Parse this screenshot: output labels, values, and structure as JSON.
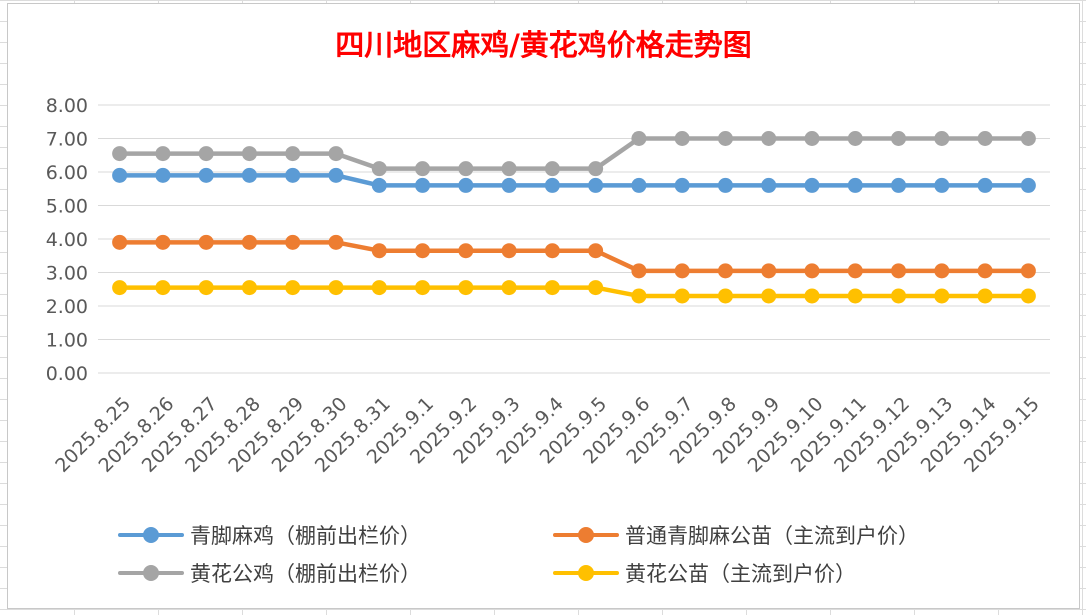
{
  "chart_data": {
    "type": "line",
    "title": "四川地区麻鸡/黄花鸡价格走势图",
    "categories": [
      "2025.8.25",
      "2025.8.26",
      "2025.8.27",
      "2025.8.28",
      "2025.8.29",
      "2025.8.30",
      "2025.8.31",
      "2025.9.1",
      "2025.9.2",
      "2025.9.3",
      "2025.9.4",
      "2025.9.5",
      "2025.9.6",
      "2025.9.7",
      "2025.9.8",
      "2025.9.9",
      "2025.9.10",
      "2025.9.11",
      "2025.9.12",
      "2025.9.13",
      "2025.9.14",
      "2025.9.15"
    ],
    "ylim": [
      0,
      8
    ],
    "yticks": [
      "0.00",
      "1.00",
      "2.00",
      "3.00",
      "4.00",
      "5.00",
      "6.00",
      "7.00",
      "8.00"
    ],
    "grid": true,
    "legend_position": "bottom",
    "series": [
      {
        "name": "青脚麻鸡（棚前出栏价）",
        "color": "#5b9bd5",
        "values": [
          5.9,
          5.9,
          5.9,
          5.9,
          5.9,
          5.9,
          5.6,
          5.6,
          5.6,
          5.6,
          5.6,
          5.6,
          5.6,
          5.6,
          5.6,
          5.6,
          5.6,
          5.6,
          5.6,
          5.6,
          5.6,
          5.6
        ]
      },
      {
        "name": "普通青脚麻公苗（主流到户价）",
        "color": "#ed7d31",
        "values": [
          3.9,
          3.9,
          3.9,
          3.9,
          3.9,
          3.9,
          3.65,
          3.65,
          3.65,
          3.65,
          3.65,
          3.65,
          3.05,
          3.05,
          3.05,
          3.05,
          3.05,
          3.05,
          3.05,
          3.05,
          3.05,
          3.05
        ]
      },
      {
        "name": "黄花公鸡（棚前出栏价）",
        "color": "#a5a5a5",
        "values": [
          6.55,
          6.55,
          6.55,
          6.55,
          6.55,
          6.55,
          6.1,
          6.1,
          6.1,
          6.1,
          6.1,
          6.1,
          7.0,
          7.0,
          7.0,
          7.0,
          7.0,
          7.0,
          7.0,
          7.0,
          7.0,
          7.0
        ]
      },
      {
        "name": "黄花公苗（主流到户价）",
        "color": "#ffc000",
        "values": [
          2.55,
          2.55,
          2.55,
          2.55,
          2.55,
          2.55,
          2.55,
          2.55,
          2.55,
          2.55,
          2.55,
          2.55,
          2.3,
          2.3,
          2.3,
          2.3,
          2.3,
          2.3,
          2.3,
          2.3,
          2.3,
          2.3
        ]
      }
    ]
  }
}
